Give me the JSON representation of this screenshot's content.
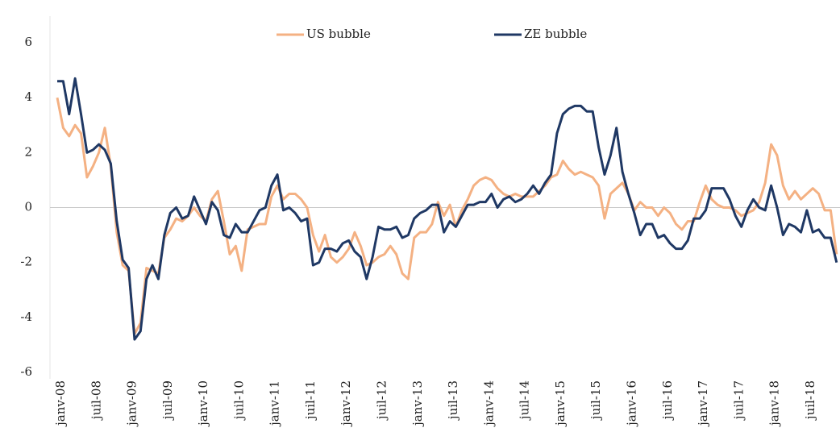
{
  "chart_data": {
    "type": "line",
    "categories": [
      "janv-08",
      null,
      null,
      null,
      null,
      null,
      "juil-08",
      null,
      null,
      null,
      null,
      null,
      "janv-09",
      null,
      null,
      null,
      null,
      null,
      "juil-09",
      null,
      null,
      null,
      null,
      null,
      "janv-10",
      null,
      null,
      null,
      null,
      null,
      "juil-10",
      null,
      null,
      null,
      null,
      null,
      "janv-11",
      null,
      null,
      null,
      null,
      null,
      "juil-11",
      null,
      null,
      null,
      null,
      null,
      "janv-12",
      null,
      null,
      null,
      null,
      null,
      "juil-12",
      null,
      null,
      null,
      null,
      null,
      "janv-13",
      null,
      null,
      null,
      null,
      null,
      "juil-13",
      null,
      null,
      null,
      null,
      null,
      "janv-14",
      null,
      null,
      null,
      null,
      null,
      "juil-14",
      null,
      null,
      null,
      null,
      null,
      "janv-15",
      null,
      null,
      null,
      null,
      null,
      "juil-15",
      null,
      null,
      null,
      null,
      null,
      "janv-16",
      null,
      null,
      null,
      null,
      null,
      "juil-16",
      null,
      null,
      null,
      null,
      null,
      "janv-17",
      null,
      null,
      null,
      null,
      null,
      "juil-17",
      null,
      null,
      null,
      null,
      null,
      "janv-18",
      null,
      null,
      null,
      null,
      null,
      "juil-18",
      null,
      null,
      null,
      null,
      null
    ],
    "series": [
      {
        "name": "US bubble",
        "color": "#f4b183",
        "values": [
          4.0,
          2.9,
          2.6,
          3.0,
          2.7,
          1.1,
          1.5,
          2.0,
          2.9,
          1.5,
          -0.9,
          -2.1,
          -2.3,
          -4.6,
          -4.2,
          -2.2,
          -2.3,
          -2.4,
          -1.1,
          -0.8,
          -0.4,
          -0.5,
          -0.3,
          0.0,
          -0.3,
          -0.5,
          0.3,
          0.6,
          -0.5,
          -1.7,
          -1.4,
          -2.3,
          -0.8,
          -0.7,
          -0.6,
          -0.6,
          0.4,
          0.8,
          0.3,
          0.5,
          0.5,
          0.3,
          0.0,
          -1.0,
          -1.6,
          -1.0,
          -1.8,
          -2.0,
          -1.8,
          -1.5,
          -0.9,
          -1.4,
          -2.1,
          -2.0,
          -1.8,
          -1.7,
          -1.4,
          -1.7,
          -2.4,
          -2.6,
          -1.1,
          -0.9,
          -0.9,
          -0.6,
          0.2,
          -0.3,
          0.1,
          -0.7,
          -0.1,
          0.3,
          0.8,
          1.0,
          1.1,
          1.0,
          0.7,
          0.5,
          0.4,
          0.5,
          0.4,
          0.4,
          0.4,
          0.6,
          0.8,
          1.1,
          1.2,
          1.7,
          1.4,
          1.2,
          1.3,
          1.2,
          1.1,
          0.8,
          -0.4,
          0.5,
          0.7,
          0.9,
          0.5,
          -0.1,
          0.2,
          0.0,
          0.0,
          -0.3,
          0.0,
          -0.2,
          -0.6,
          -0.8,
          -0.5,
          -0.5,
          0.2,
          0.8,
          0.3,
          0.1,
          0.0,
          0.0,
          -0.1,
          -0.3,
          -0.2,
          -0.1,
          0.2,
          0.9,
          2.3,
          1.9,
          0.8,
          0.3,
          0.6,
          0.3,
          0.5,
          0.7,
          0.5,
          -0.1,
          -0.1,
          -1.7
        ]
      },
      {
        "name": "ZE bubble",
        "color": "#1f3864",
        "values": [
          4.6,
          4.6,
          3.4,
          4.7,
          3.4,
          2.0,
          2.1,
          2.3,
          2.1,
          1.6,
          -0.5,
          -1.9,
          -2.2,
          -4.8,
          -4.5,
          -2.6,
          -2.1,
          -2.6,
          -1.0,
          -0.2,
          0.0,
          -0.4,
          -0.3,
          0.4,
          -0.1,
          -0.6,
          0.2,
          -0.1,
          -1.0,
          -1.1,
          -0.6,
          -0.9,
          -0.9,
          -0.5,
          -0.1,
          0.0,
          0.8,
          1.2,
          -0.1,
          0.0,
          -0.2,
          -0.5,
          -0.4,
          -2.1,
          -2.0,
          -1.5,
          -1.5,
          -1.6,
          -1.3,
          -1.2,
          -1.6,
          -1.8,
          -2.6,
          -1.8,
          -0.7,
          -0.8,
          -0.8,
          -0.7,
          -1.1,
          -1.0,
          -0.4,
          -0.2,
          -0.1,
          0.1,
          0.1,
          -0.9,
          -0.5,
          -0.7,
          -0.3,
          0.1,
          0.1,
          0.2,
          0.2,
          0.5,
          0.0,
          0.3,
          0.4,
          0.2,
          0.3,
          0.5,
          0.8,
          0.5,
          0.9,
          1.2,
          2.7,
          3.4,
          3.6,
          3.7,
          3.7,
          3.5,
          3.5,
          2.2,
          1.2,
          1.9,
          2.9,
          1.3,
          0.5,
          -0.2,
          -1.0,
          -0.6,
          -0.6,
          -1.1,
          -1.0,
          -1.3,
          -1.5,
          -1.5,
          -1.2,
          -0.4,
          -0.4,
          -0.1,
          0.7,
          0.7,
          0.7,
          0.3,
          -0.3,
          -0.7,
          -0.1,
          0.3,
          0.0,
          -0.1,
          0.8,
          0.0,
          -1.0,
          -0.6,
          -0.7,
          -0.9,
          -0.1,
          -0.9,
          -0.8,
          -1.1,
          -1.1,
          -2.0
        ]
      }
    ],
    "ylim": [
      -6,
      6
    ],
    "yticks": [
      -6,
      -4,
      -2,
      0,
      2,
      4,
      6
    ],
    "grid": false,
    "legend": "top"
  }
}
